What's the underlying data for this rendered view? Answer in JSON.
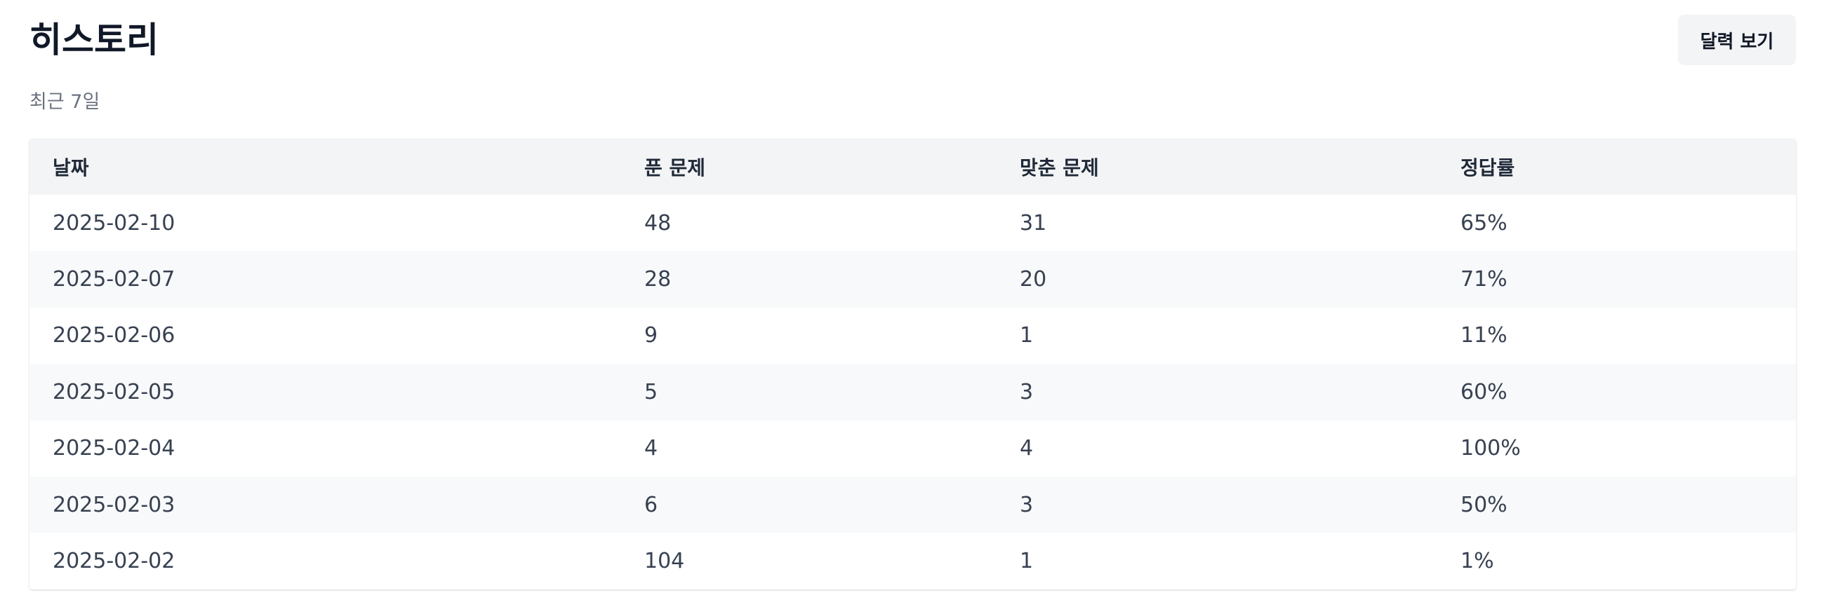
{
  "header": {
    "title": "히스토리",
    "subtitle": "최근 7일",
    "calendar_button_label": "달력 보기"
  },
  "table": {
    "columns": [
      "날짜",
      "푼 문제",
      "맞춘 문제",
      "정답률"
    ],
    "rows": [
      [
        "2025-02-10",
        "48",
        "31",
        "65%"
      ],
      [
        "2025-02-07",
        "28",
        "20",
        "71%"
      ],
      [
        "2025-02-06",
        "9",
        "1",
        "11%"
      ],
      [
        "2025-02-05",
        "5",
        "3",
        "60%"
      ],
      [
        "2025-02-04",
        "4",
        "4",
        "100%"
      ],
      [
        "2025-02-03",
        "6",
        "3",
        "50%"
      ],
      [
        "2025-02-02",
        "104",
        "1",
        "1%"
      ]
    ]
  }
}
